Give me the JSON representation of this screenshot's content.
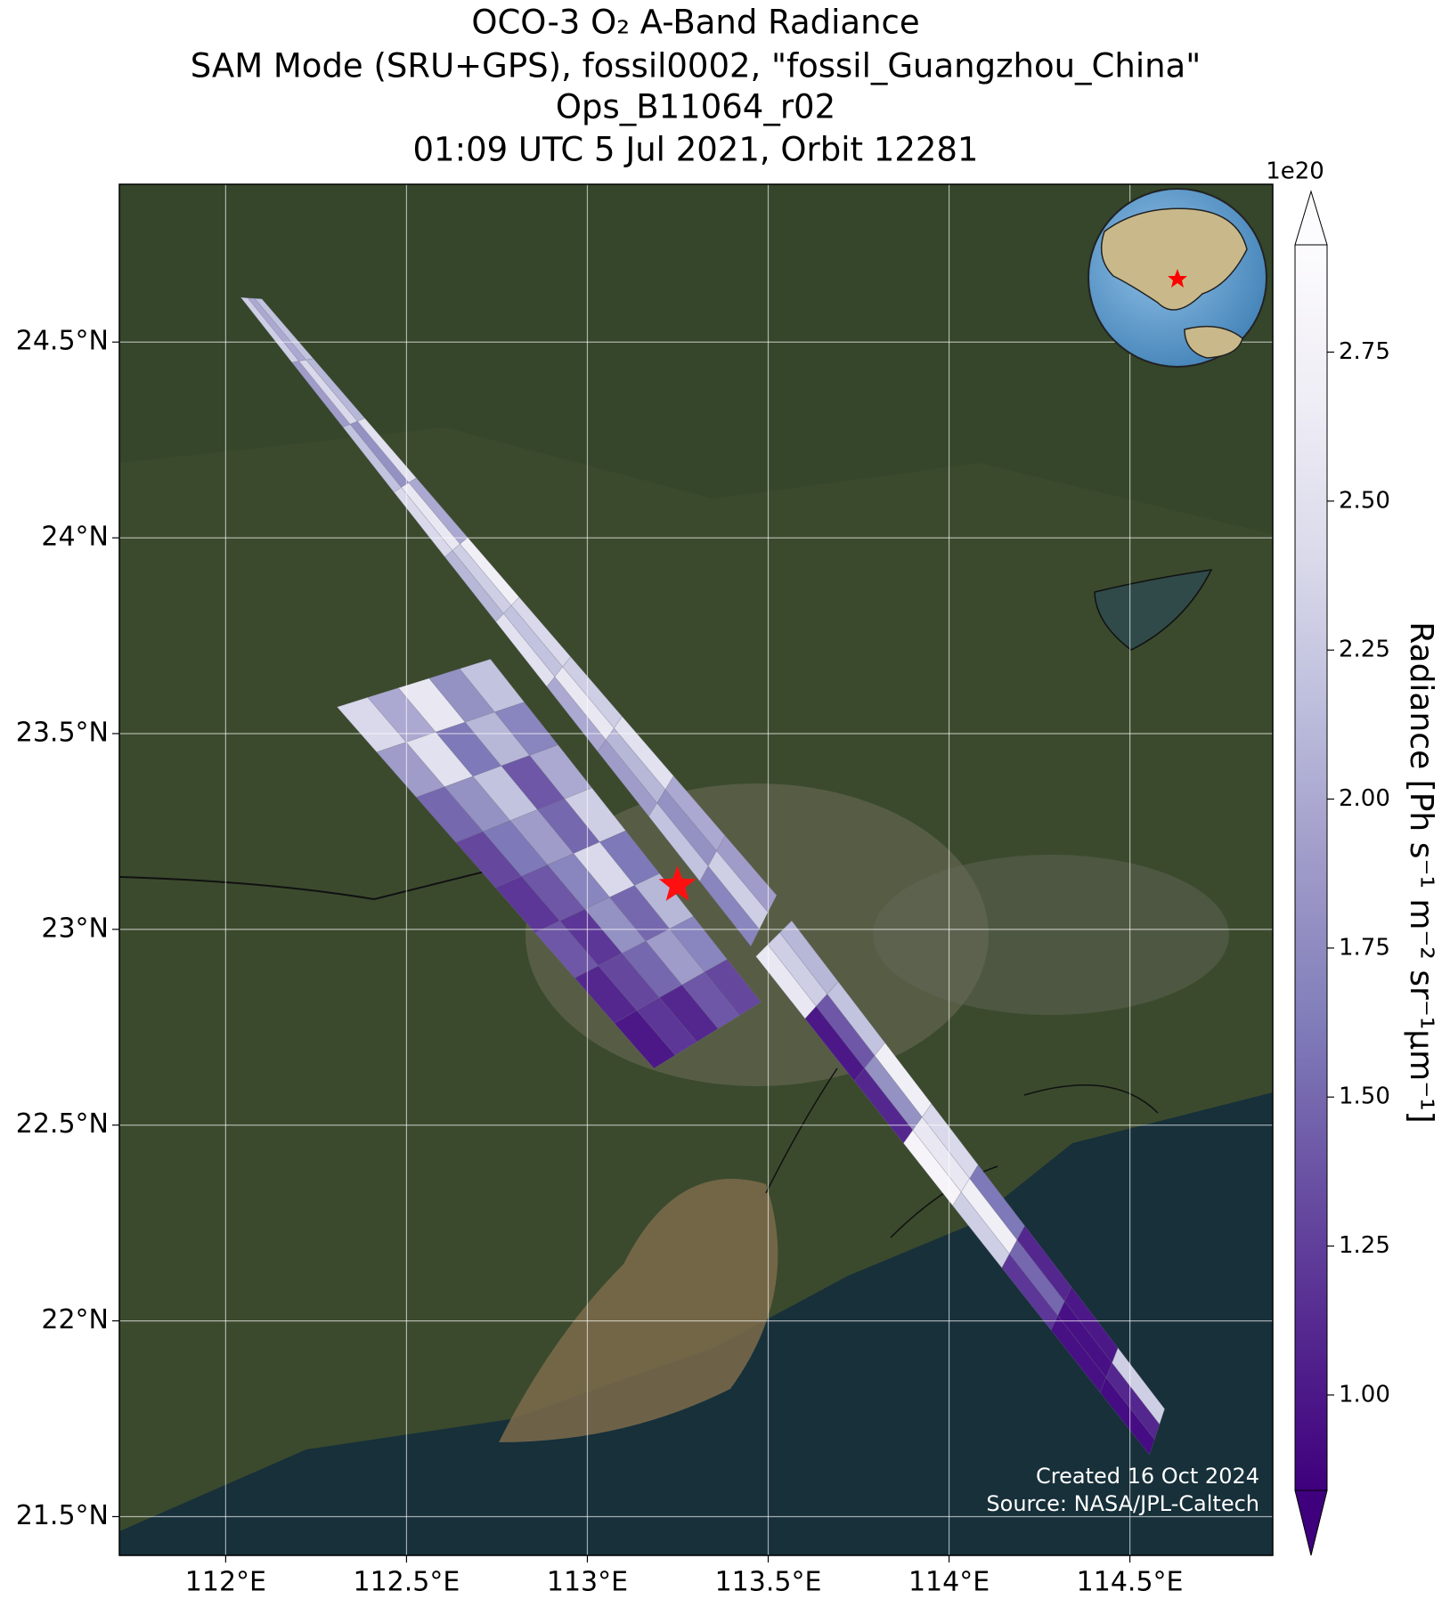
{
  "chart_data": {
    "type": "swath-map",
    "title_lines": [
      "OCO-3 O₂ A-Band Radiance",
      "SAM Mode (SRU+GPS), fossil0002, \"fossil_Guangzhou_China\"",
      "Ops_B11064_r02",
      "01:09 UTC 5 Jul 2021, Orbit 12281"
    ],
    "xlim": [
      111.706,
      114.895
    ],
    "ylim": [
      21.401,
      24.903
    ],
    "xticks": [
      {
        "value": 112,
        "label": "112°E"
      },
      {
        "value": 112.5,
        "label": "112.5°E"
      },
      {
        "value": 113,
        "label": "113°E"
      },
      {
        "value": 113.5,
        "label": "113.5°E"
      },
      {
        "value": 114,
        "label": "114°E"
      },
      {
        "value": 114.5,
        "label": "114.5°E"
      }
    ],
    "yticks": [
      {
        "value": 21.5,
        "label": "21.5°N"
      },
      {
        "value": 22,
        "label": "22°N"
      },
      {
        "value": 22.5,
        "label": "22.5°N"
      },
      {
        "value": 23,
        "label": "23°N"
      },
      {
        "value": 23.5,
        "label": "23.5°N"
      },
      {
        "value": 24,
        "label": "24°N"
      },
      {
        "value": 24.5,
        "label": "24.5°N"
      }
    ],
    "grid": true,
    "target": {
      "lon": 113.249,
      "lat": 23.113
    },
    "colorbar": {
      "label": "Radiance [Ph s⁻¹ m⁻² sr⁻¹μm⁻¹]",
      "offset_label": "1e20",
      "clim": [
        0.84,
        2.93
      ],
      "ticks": [
        {
          "value": 1.0,
          "label": "1.00"
        },
        {
          "value": 1.25,
          "label": "1.25"
        },
        {
          "value": 1.5,
          "label": "1.50"
        },
        {
          "value": 1.75,
          "label": "1.75"
        },
        {
          "value": 2.0,
          "label": "2.00"
        },
        {
          "value": 2.25,
          "label": "2.25"
        },
        {
          "value": 2.5,
          "label": "2.50"
        },
        {
          "value": 2.75,
          "label": "2.75"
        }
      ],
      "colormap": [
        "#3f007d",
        "#54278f",
        "#6a51a3",
        "#807dba",
        "#9e9ac8",
        "#bcbddc",
        "#dadaeb",
        "#efedf5",
        "#fcfbfd"
      ]
    },
    "swaths": [
      {
        "corners": [
          [
            112.308,
            23.568
          ],
          [
            112.732,
            23.69
          ],
          [
            113.48,
            22.814
          ],
          [
            113.184,
            22.645
          ]
        ],
        "values": [
          [
            2.4,
            2.0,
            2.6,
            1.8,
            2.2
          ],
          [
            1.9,
            2.5,
            1.6,
            2.1,
            1.7
          ],
          [
            1.5,
            1.8,
            2.2,
            1.4,
            2.0
          ],
          [
            1.3,
            1.6,
            1.9,
            1.5,
            2.3
          ],
          [
            1.2,
            1.4,
            1.7,
            2.4,
            1.6
          ],
          [
            1.4,
            1.2,
            1.8,
            1.5,
            2.1
          ],
          [
            1.1,
            1.3,
            1.5,
            1.9,
            1.7
          ],
          [
            1.0,
            1.2,
            1.1,
            1.4,
            1.3
          ]
        ]
      },
      {
        "corners": [
          [
            112.042,
            24.614
          ],
          [
            112.1,
            24.61
          ],
          [
            113.523,
            23.087
          ],
          [
            113.452,
            22.957
          ]
        ],
        "values": [
          [
            2.3,
            2.0,
            2.2
          ],
          [
            1.9,
            2.4,
            2.1
          ],
          [
            2.2,
            1.8,
            2.5
          ],
          [
            2.4,
            2.6,
            2.0
          ],
          [
            2.1,
            2.3,
            2.7
          ],
          [
            2.5,
            2.2,
            2.4
          ],
          [
            2.0,
            2.6,
            2.3
          ],
          [
            1.9,
            2.1,
            2.5
          ],
          [
            2.2,
            1.8,
            2.0
          ],
          [
            1.7,
            2.3,
            1.9
          ]
        ]
      },
      {
        "corners": [
          [
            113.466,
            22.931
          ],
          [
            113.565,
            23.022
          ],
          [
            114.596,
            21.775
          ],
          [
            114.554,
            21.658
          ]
        ],
        "values": [
          [
            2.6,
            2.3,
            2.1
          ],
          [
            1.0,
            1.4,
            2.2
          ],
          [
            1.1,
            1.8,
            2.7
          ],
          [
            2.8,
            2.6,
            2.4
          ],
          [
            2.3,
            2.7,
            1.6
          ],
          [
            1.2,
            1.5,
            1.1
          ],
          [
            0.95,
            0.95,
            1.0
          ],
          [
            0.92,
            1.1,
            2.3
          ]
        ]
      }
    ],
    "footer": [
      "Created 16 Oct 2024",
      "Source: NASA/JPL-Caltech"
    ]
  }
}
